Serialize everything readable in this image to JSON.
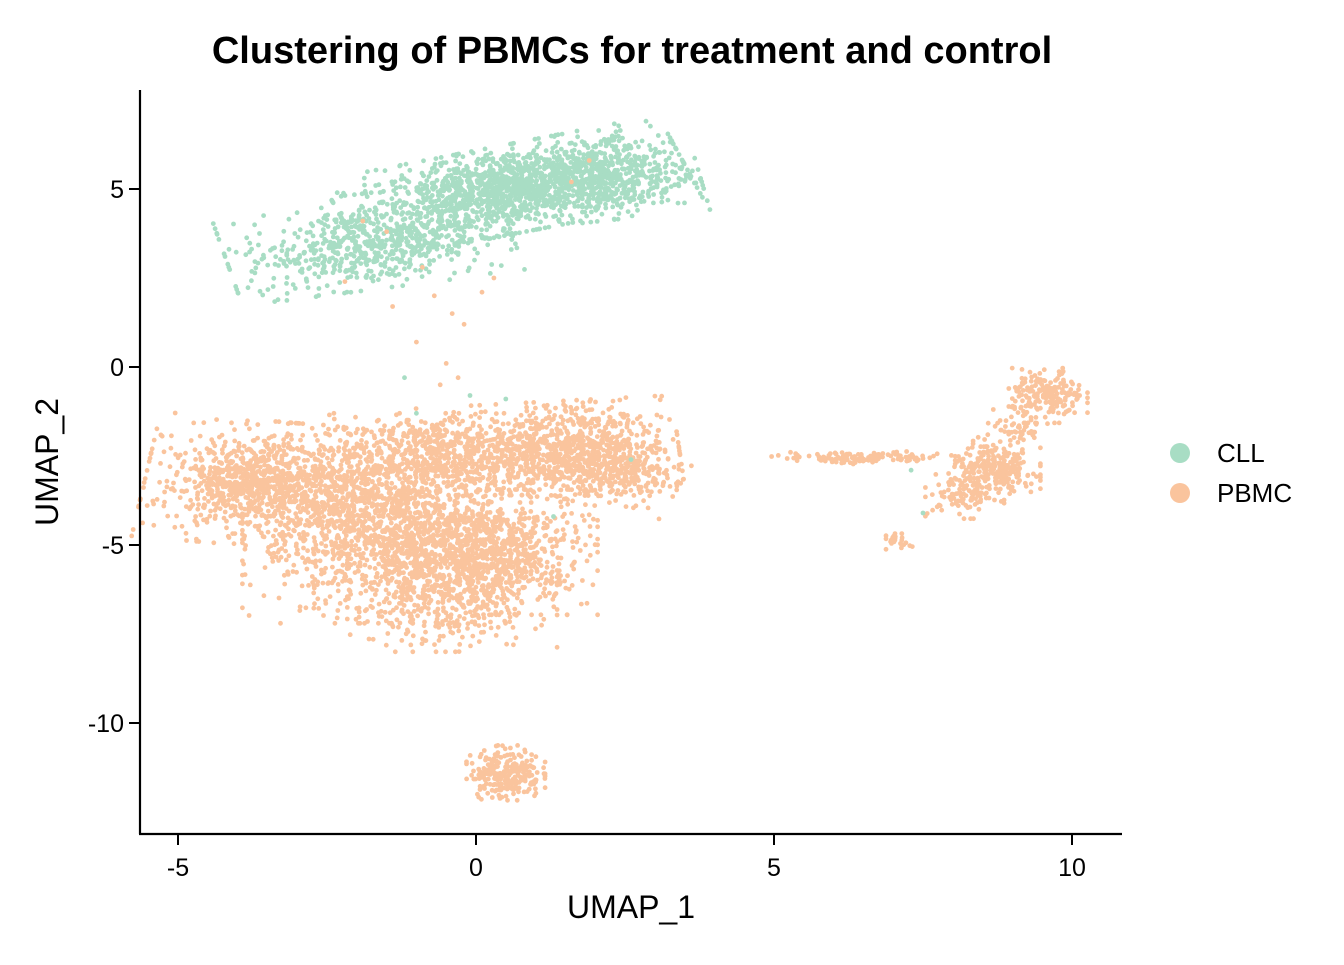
{
  "chart_data": {
    "type": "scatter",
    "title": "Clustering of PBMCs for treatment and control",
    "xlabel": "UMAP_1",
    "ylabel": "UMAP_2",
    "xlim": [
      -5.65,
      10.8
    ],
    "ylim": [
      -13.1,
      7.8
    ],
    "xticks": [
      -5,
      0,
      5,
      10
    ],
    "xtick_labels": [
      "-5",
      "0",
      "5",
      "10"
    ],
    "yticks": [
      -10,
      -5,
      0,
      5
    ],
    "ytick_labels": [
      "-10",
      "-5",
      "0",
      "5"
    ],
    "grid": false,
    "legend_position": "right",
    "series": [
      {
        "name": "CLL",
        "color": "#a8ddc4",
        "clusters": [
          {
            "center": [
              0.6,
              5.0
            ],
            "spread": [
              1.35,
              0.55
            ],
            "angle_deg": 18,
            "n": 1400
          },
          {
            "center": [
              -1.8,
              3.4
            ],
            "spread": [
              1.1,
              0.55
            ],
            "angle_deg": 12,
            "n": 600
          },
          {
            "center": [
              2.0,
              5.2
            ],
            "spread": [
              0.8,
              0.5
            ],
            "angle_deg": 10,
            "n": 400
          }
        ],
        "outliers": [
          [
            -1.2,
            -0.3
          ],
          [
            -0.1,
            -0.8
          ],
          [
            0.5,
            -0.9
          ],
          [
            -1.0,
            -1.3
          ],
          [
            7.3,
            -2.9
          ],
          [
            7.5,
            -4.1
          ],
          [
            1.3,
            -4.2
          ],
          [
            2.6,
            -2.6
          ]
        ]
      },
      {
        "name": "PBMC",
        "color": "#fac49d",
        "clusters": [
          {
            "center": [
              -2.7,
              -3.4
            ],
            "spread": [
              1.3,
              0.8
            ],
            "angle_deg": -8,
            "n": 1200
          },
          {
            "center": [
              -3.8,
              -3.2
            ],
            "spread": [
              0.5,
              0.45
            ],
            "angle_deg": 0,
            "n": 300
          },
          {
            "center": [
              -1.5,
              -5.0
            ],
            "spread": [
              1.1,
              1.0
            ],
            "angle_deg": 0,
            "n": 900
          },
          {
            "center": [
              -0.4,
              -5.8
            ],
            "spread": [
              0.8,
              1.0
            ],
            "angle_deg": 0,
            "n": 700
          },
          {
            "center": [
              0.5,
              -5.2
            ],
            "spread": [
              0.7,
              0.8
            ],
            "angle_deg": 0,
            "n": 500
          },
          {
            "center": [
              1.2,
              -2.3
            ],
            "spread": [
              1.0,
              0.6
            ],
            "angle_deg": 5,
            "n": 800
          },
          {
            "center": [
              2.2,
              -2.8
            ],
            "spread": [
              0.6,
              0.5
            ],
            "angle_deg": -20,
            "n": 400
          },
          {
            "center": [
              -0.8,
              -2.4
            ],
            "spread": [
              0.8,
              0.5
            ],
            "angle_deg": 0,
            "n": 400
          },
          {
            "center": [
              0.5,
              -11.4
            ],
            "spread": [
              0.3,
              0.35
            ],
            "angle_deg": 0,
            "n": 250
          },
          {
            "center": [
              9.6,
              -0.8
            ],
            "spread": [
              0.3,
              0.35
            ],
            "angle_deg": 0,
            "n": 200
          },
          {
            "center": [
              8.7,
              -2.9
            ],
            "spread": [
              0.35,
              0.3
            ],
            "angle_deg": 0,
            "n": 250
          },
          {
            "center": [
              8.2,
              -3.6
            ],
            "spread": [
              0.3,
              0.3
            ],
            "angle_deg": 0,
            "n": 100
          },
          {
            "center": [
              6.5,
              -2.55
            ],
            "spread": [
              0.7,
              0.08
            ],
            "angle_deg": 0,
            "n": 140
          },
          {
            "center": [
              7.1,
              -4.9
            ],
            "spread": [
              0.1,
              0.1
            ],
            "angle_deg": 0,
            "n": 25
          },
          {
            "center": [
              9.0,
              -1.8
            ],
            "spread": [
              0.3,
              0.3
            ],
            "angle_deg": 0,
            "n": 60
          }
        ],
        "outliers": [
          [
            -1.5,
            3.8
          ],
          [
            -0.9,
            2.8
          ],
          [
            -0.4,
            1.5
          ],
          [
            0.3,
            2.5
          ],
          [
            -1.9,
            4.1
          ],
          [
            1.6,
            5.2
          ],
          [
            1.9,
            5.8
          ],
          [
            -0.5,
            0.1
          ],
          [
            -0.6,
            -0.5
          ],
          [
            -0.3,
            -0.3
          ],
          [
            -1.0,
            0.7
          ],
          [
            -2.2,
            2.4
          ],
          [
            -1.4,
            1.7
          ],
          [
            -0.2,
            1.2
          ],
          [
            -0.7,
            2.0
          ],
          [
            0.1,
            2.1
          ]
        ]
      }
    ]
  }
}
